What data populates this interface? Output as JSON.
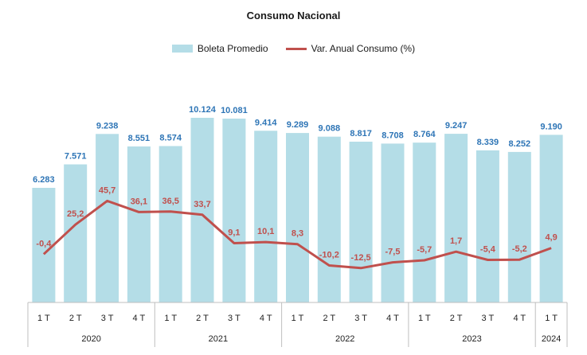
{
  "chart_data": {
    "type": "bar",
    "title": "Consumo Nacional",
    "categories": [
      "1 T",
      "2 T",
      "3 T",
      "4 T",
      "1 T",
      "2 T",
      "3 T",
      "4 T",
      "1 T",
      "2 T",
      "3 T",
      "4 T",
      "1 T",
      "2 T",
      "3 T",
      "4 T",
      "1 T"
    ],
    "groups": [
      {
        "label": "2020",
        "count": 4
      },
      {
        "label": "2021",
        "count": 4
      },
      {
        "label": "2022",
        "count": 4
      },
      {
        "label": "2023",
        "count": 4
      },
      {
        "label": "2024",
        "count": 1
      }
    ],
    "series": [
      {
        "name": "Boleta Promedio",
        "type": "bar",
        "color": "#b4dde7",
        "label_color": "#2e75b6",
        "values": [
          6283,
          7571,
          9238,
          8551,
          8574,
          10124,
          10081,
          9414,
          9289,
          9088,
          8817,
          8708,
          8764,
          9247,
          8339,
          8252,
          9190
        ],
        "labels": [
          "6.283",
          "7.571",
          "9.238",
          "8.551",
          "8.574",
          "10.124",
          "10.081",
          "9.414",
          "9.289",
          "9.088",
          "8.817",
          "8.708",
          "8.764",
          "9.247",
          "8.339",
          "8.252",
          "9.190"
        ]
      },
      {
        "name": "Var. Anual Consumo (%)",
        "type": "line",
        "color": "#c0504d",
        "values": [
          -0.4,
          25.2,
          45.7,
          36.1,
          36.5,
          33.7,
          9.1,
          10.1,
          8.3,
          -10.2,
          -12.5,
          -7.5,
          -5.7,
          1.7,
          -5.4,
          -5.2,
          4.9
        ],
        "labels": [
          "-0,4",
          "25,2",
          "45,7",
          "36,1",
          "36,5",
          "33,7",
          "9,1",
          "10,1",
          "8,3",
          "-10,2",
          "-12,5",
          "-7,5",
          "-5,7",
          "1,7",
          "-5,4",
          "-5,2",
          "4,9"
        ]
      }
    ],
    "legend_position": "top-center",
    "grid": false
  }
}
